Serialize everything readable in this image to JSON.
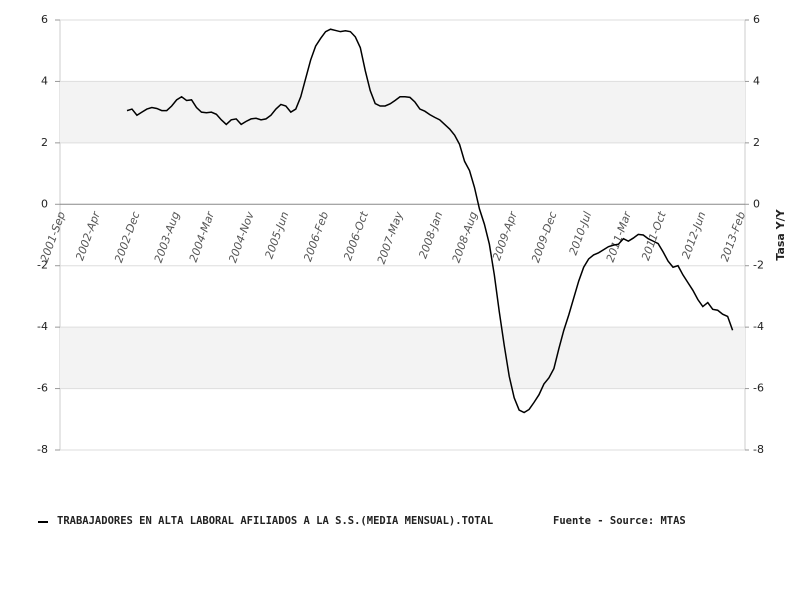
{
  "chart_data": {
    "type": "line",
    "y2label": "Tasa Y/Y",
    "source": "Fuente - Source: MTAS",
    "categories": [
      "2001-Sep",
      null,
      null,
      null,
      null,
      null,
      null,
      "2002-Apr",
      null,
      null,
      null,
      null,
      null,
      null,
      null,
      "2002-Dec",
      null,
      null,
      null,
      null,
      null,
      null,
      null,
      "2003-Aug",
      null,
      null,
      null,
      null,
      null,
      null,
      "2004-Mar",
      null,
      null,
      null,
      null,
      null,
      null,
      null,
      "2004-Nov",
      null,
      null,
      null,
      null,
      null,
      null,
      "2005-Jun",
      null,
      null,
      null,
      null,
      null,
      null,
      null,
      "2006-Feb",
      null,
      null,
      null,
      null,
      null,
      null,
      null,
      "2006-Oct",
      null,
      null,
      null,
      null,
      null,
      null,
      "2007-May",
      null,
      null,
      null,
      null,
      null,
      null,
      null,
      "2008-Jan",
      null,
      null,
      null,
      null,
      null,
      null,
      "2008-Aug",
      null,
      null,
      null,
      null,
      null,
      null,
      null,
      "2009-Apr",
      null,
      null,
      null,
      null,
      null,
      null,
      null,
      "2009-Dec",
      null,
      null,
      null,
      null,
      null,
      null,
      "2010-Jul",
      null,
      null,
      null,
      null,
      null,
      null,
      null,
      "2011-Mar",
      null,
      null,
      null,
      null,
      null,
      null,
      "2011-Oct",
      null,
      null,
      null,
      null,
      null,
      null,
      null,
      "2012-Jun",
      null,
      null,
      null,
      null,
      null,
      null,
      null,
      "2013-Feb"
    ],
    "series": [
      {
        "name": "TRABAJADORES EN ALTA LABORAL AFILIADOS A LA S.S.(MEDIA MENSUAL).TOTAL",
        "color": "#000000",
        "values": [
          null,
          null,
          null,
          null,
          null,
          null,
          null,
          null,
          null,
          null,
          null,
          null,
          null,
          3.05,
          3.1,
          2.9,
          3.0,
          3.1,
          3.15,
          3.12,
          3.05,
          3.05,
          3.2,
          3.4,
          3.5,
          3.38,
          3.4,
          3.15,
          3.0,
          2.98,
          3.0,
          2.93,
          2.75,
          2.6,
          2.75,
          2.78,
          2.6,
          2.7,
          2.78,
          2.8,
          2.75,
          2.78,
          2.9,
          3.1,
          3.25,
          3.2,
          3.0,
          3.1,
          3.5,
          4.1,
          4.7,
          5.15,
          5.4,
          5.62,
          5.7,
          5.66,
          5.62,
          5.65,
          5.62,
          5.45,
          5.1,
          4.35,
          3.7,
          3.28,
          3.2,
          3.2,
          3.27,
          3.38,
          3.5,
          3.5,
          3.48,
          3.33,
          3.1,
          3.03,
          2.92,
          2.83,
          2.75,
          2.6,
          2.45,
          2.25,
          1.95,
          1.4,
          1.1,
          0.55,
          -0.15,
          -0.65,
          -1.3,
          -2.3,
          -3.5,
          -4.6,
          -5.6,
          -6.3,
          -6.7,
          -6.78,
          -6.68,
          -6.45,
          -6.2,
          -5.85,
          -5.65,
          -5.35,
          -4.7,
          -4.1,
          -3.6,
          -3.05,
          -2.5,
          -2.05,
          -1.78,
          -1.65,
          -1.58,
          -1.48,
          -1.38,
          -1.33,
          -1.3,
          -1.12,
          -1.2,
          -1.1,
          -0.98,
          -1.0,
          -1.12,
          -1.2,
          -1.28,
          -1.55,
          -1.85,
          -2.05,
          -2.0,
          -2.3,
          -2.55,
          -2.8,
          -3.1,
          -3.33,
          -3.2,
          -3.42,
          -3.45,
          -3.58,
          -3.65,
          -4.1,
          null,
          null
        ]
      }
    ],
    "ylim": [
      -8,
      6
    ],
    "yticks": [
      -8,
      -6,
      -4,
      -2,
      0,
      2,
      4,
      6
    ],
    "y2lim": [
      -8,
      6
    ],
    "y2ticks": [
      -8,
      -6,
      -4,
      -2,
      0,
      2,
      4,
      6
    ],
    "grid": true
  }
}
